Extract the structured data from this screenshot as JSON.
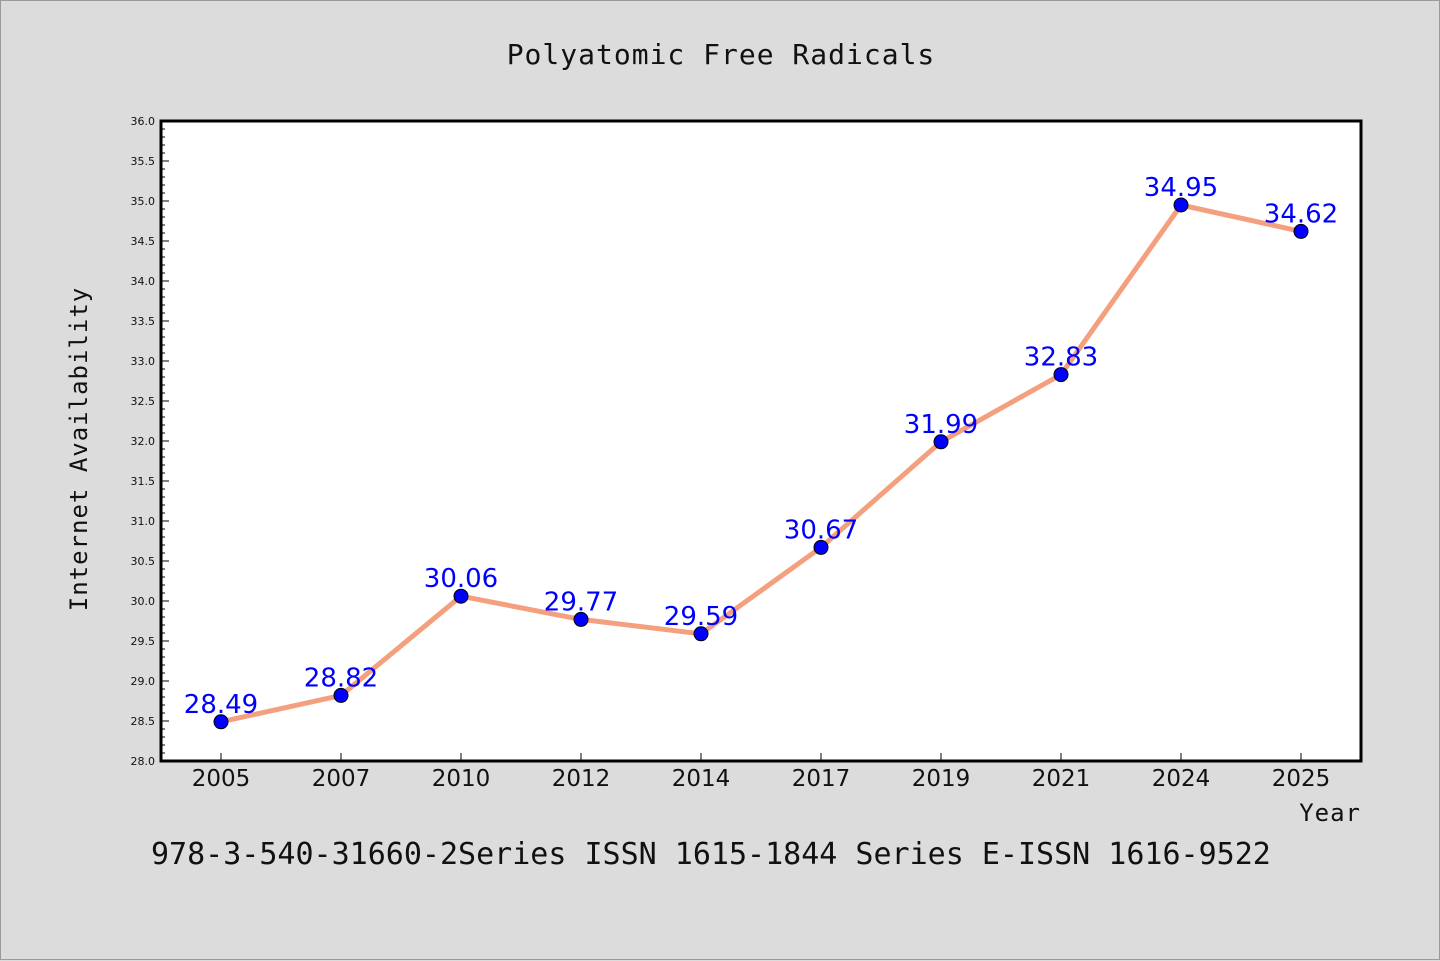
{
  "chart_data": {
    "type": "line",
    "title": "Polyatomic Free Radicals",
    "xlabel": "Year",
    "ylabel": "Internet Availability",
    "categories": [
      "2005",
      "2007",
      "2010",
      "2012",
      "2014",
      "2017",
      "2019",
      "2021",
      "2024",
      "2025"
    ],
    "series": [
      {
        "values": [
          28.49,
          28.82,
          30.06,
          29.77,
          29.59,
          30.67,
          31.99,
          32.83,
          34.95,
          34.62
        ],
        "data_labels": [
          "28.49",
          "28.82",
          "30.06",
          "29.77",
          "29.59",
          "30.67",
          "31.99",
          "32.83",
          "34.95",
          "34.62"
        ]
      }
    ],
    "ylim": [
      28.0,
      36.0
    ],
    "yticks": [
      "28.0",
      "28.5",
      "29.0",
      "29.5",
      "30.0",
      "30.5",
      "31.0",
      "31.5",
      "32.0",
      "32.5",
      "33.0",
      "33.5",
      "34.0",
      "34.5",
      "35.0",
      "35.5",
      "36.0"
    ],
    "grid": false,
    "legend": "none",
    "colors": {
      "line": "#f4a07e",
      "marker": "#0000ff",
      "labels": "#0000ff",
      "background": "#dcdcdc",
      "plot_background": "#ffffff"
    }
  },
  "footer": "978-3-540-31660-2Series ISSN 1615-1844 Series E-ISSN 1616-9522"
}
